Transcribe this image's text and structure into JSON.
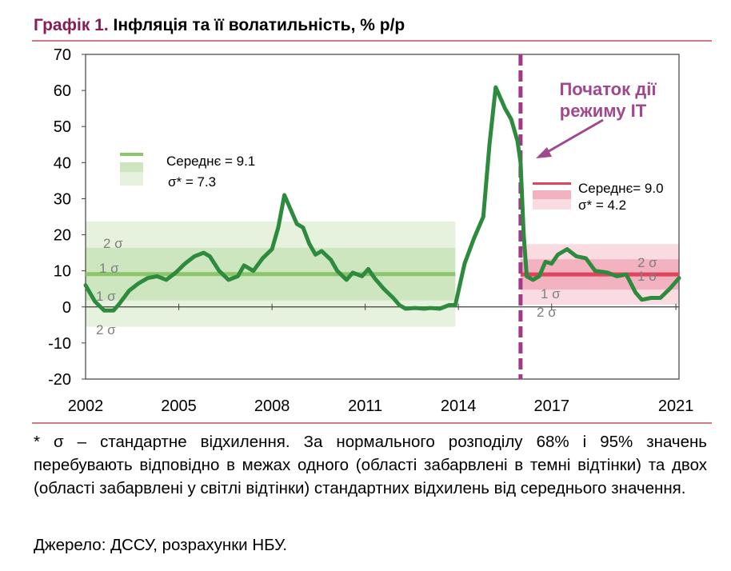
{
  "header": {
    "number": "Графік 1.",
    "title": "Інфляція та її волатильність, % р/р"
  },
  "footnote": "* σ – стандартне відхилення. За нормального розподілу 68% і 95% значень перебувають відповідно в межах одного (області забарвлені в темні відтінки) та двох (області забарвлені у світлі відтінки) стандартних відхилень від середнього значення.",
  "source": "Джерело: ДССУ, розрахунки НБУ.",
  "colors": {
    "green": "#2e8b3d",
    "green_mean": "#8cc56b",
    "green_band_dark": "#cde6c0",
    "green_band_light": "#e6f2de",
    "red_mean": "#e0435c",
    "red_band_dark": "#f2b2c0",
    "red_band_light": "#fadbe2",
    "it_marker": "#9e3a87",
    "annotation": "#a0488f"
  },
  "chart_data": {
    "type": "line",
    "xlim": [
      2002,
      2021.1
    ],
    "ylim": [
      -20,
      70
    ],
    "x_ticks": [
      "2002",
      "2005",
      "2008",
      "2011",
      "2014",
      "2017",
      "2021"
    ],
    "x_tick_values": [
      2002,
      2005,
      2008,
      2011,
      2014,
      2017,
      2021
    ],
    "y_ticks": [
      "-20",
      "-10",
      "0",
      "10",
      "20",
      "30",
      "40",
      "50",
      "60",
      "70"
    ],
    "y_tick_values": [
      -20,
      -10,
      0,
      10,
      20,
      30,
      40,
      50,
      60,
      70
    ],
    "grid": false,
    "series": [
      {
        "values": [
          [
            2002.0,
            6.0
          ],
          [
            2002.3,
            1.5
          ],
          [
            2002.6,
            -1.0
          ],
          [
            2002.9,
            -1.0
          ],
          [
            2003.1,
            1.0
          ],
          [
            2003.4,
            4.5
          ],
          [
            2003.7,
            6.5
          ],
          [
            2004.0,
            8.0
          ],
          [
            2004.3,
            8.5
          ],
          [
            2004.6,
            7.5
          ],
          [
            2004.9,
            9.5
          ],
          [
            2005.2,
            12.0
          ],
          [
            2005.5,
            14.0
          ],
          [
            2005.8,
            15.0
          ],
          [
            2006.0,
            14.0
          ],
          [
            2006.3,
            10.0
          ],
          [
            2006.6,
            7.5
          ],
          [
            2006.9,
            8.5
          ],
          [
            2007.1,
            11.5
          ],
          [
            2007.4,
            10.0
          ],
          [
            2007.7,
            13.5
          ],
          [
            2008.0,
            16.0
          ],
          [
            2008.2,
            22.0
          ],
          [
            2008.4,
            31.0
          ],
          [
            2008.6,
            27.0
          ],
          [
            2008.8,
            23.0
          ],
          [
            2009.0,
            22.0
          ],
          [
            2009.2,
            17.5
          ],
          [
            2009.4,
            14.5
          ],
          [
            2009.6,
            15.5
          ],
          [
            2009.9,
            13.0
          ],
          [
            2010.1,
            10.0
          ],
          [
            2010.4,
            7.5
          ],
          [
            2010.6,
            9.5
          ],
          [
            2010.9,
            8.5
          ],
          [
            2011.1,
            10.5
          ],
          [
            2011.3,
            8.0
          ],
          [
            2011.6,
            5.0
          ],
          [
            2011.9,
            2.5
          ],
          [
            2012.1,
            0.5
          ],
          [
            2012.3,
            -0.5
          ],
          [
            2012.6,
            -0.3
          ],
          [
            2012.9,
            -0.5
          ],
          [
            2013.1,
            -0.3
          ],
          [
            2013.4,
            -0.5
          ],
          [
            2013.7,
            0.5
          ],
          [
            2013.9,
            0.5
          ],
          [
            2014.2,
            12.0
          ],
          [
            2014.5,
            19.0
          ],
          [
            2014.8,
            25.0
          ],
          [
            2015.0,
            45.0
          ],
          [
            2015.2,
            60.9
          ],
          [
            2015.5,
            55.0
          ],
          [
            2015.7,
            52.0
          ],
          [
            2015.9,
            46.0
          ],
          [
            2016.0,
            40.0
          ],
          [
            2016.1,
            20.0
          ],
          [
            2016.2,
            8.5
          ],
          [
            2016.4,
            7.5
          ],
          [
            2016.6,
            8.5
          ],
          [
            2016.8,
            12.5
          ],
          [
            2017.0,
            12.0
          ],
          [
            2017.2,
            14.5
          ],
          [
            2017.5,
            16.0
          ],
          [
            2017.8,
            14.0
          ],
          [
            2018.1,
            13.5
          ],
          [
            2018.4,
            10.0
          ],
          [
            2018.8,
            9.5
          ],
          [
            2019.1,
            8.5
          ],
          [
            2019.4,
            9.0
          ],
          [
            2019.7,
            4.0
          ],
          [
            2019.9,
            2.0
          ],
          [
            2020.2,
            2.5
          ],
          [
            2020.5,
            2.5
          ],
          [
            2020.8,
            5.0
          ],
          [
            2021.1,
            8.0
          ]
        ]
      }
    ],
    "regime_change_x": 2016.0,
    "periods": [
      {
        "x_range": [
          2002.0,
          2013.9
        ],
        "mean": 9.1,
        "sigma": 7.3,
        "legend_mean": "Середнє = 9.1",
        "legend_sigma": "σ* = 7.3",
        "band_labels": [
          "2 σ",
          "1 σ",
          "1 σ",
          "2 σ"
        ]
      },
      {
        "x_range": [
          2016.0,
          2021.1
        ],
        "mean": 9.0,
        "sigma": 4.2,
        "legend_mean": "Середнє= 9.0",
        "legend_sigma": "σ* = 4.2",
        "band_labels": [
          "2 σ",
          "1 σ",
          "1 σ",
          "2 σ"
        ]
      }
    ],
    "annotation": {
      "line1": "Початок дії",
      "line2": "режиму ІТ"
    }
  }
}
